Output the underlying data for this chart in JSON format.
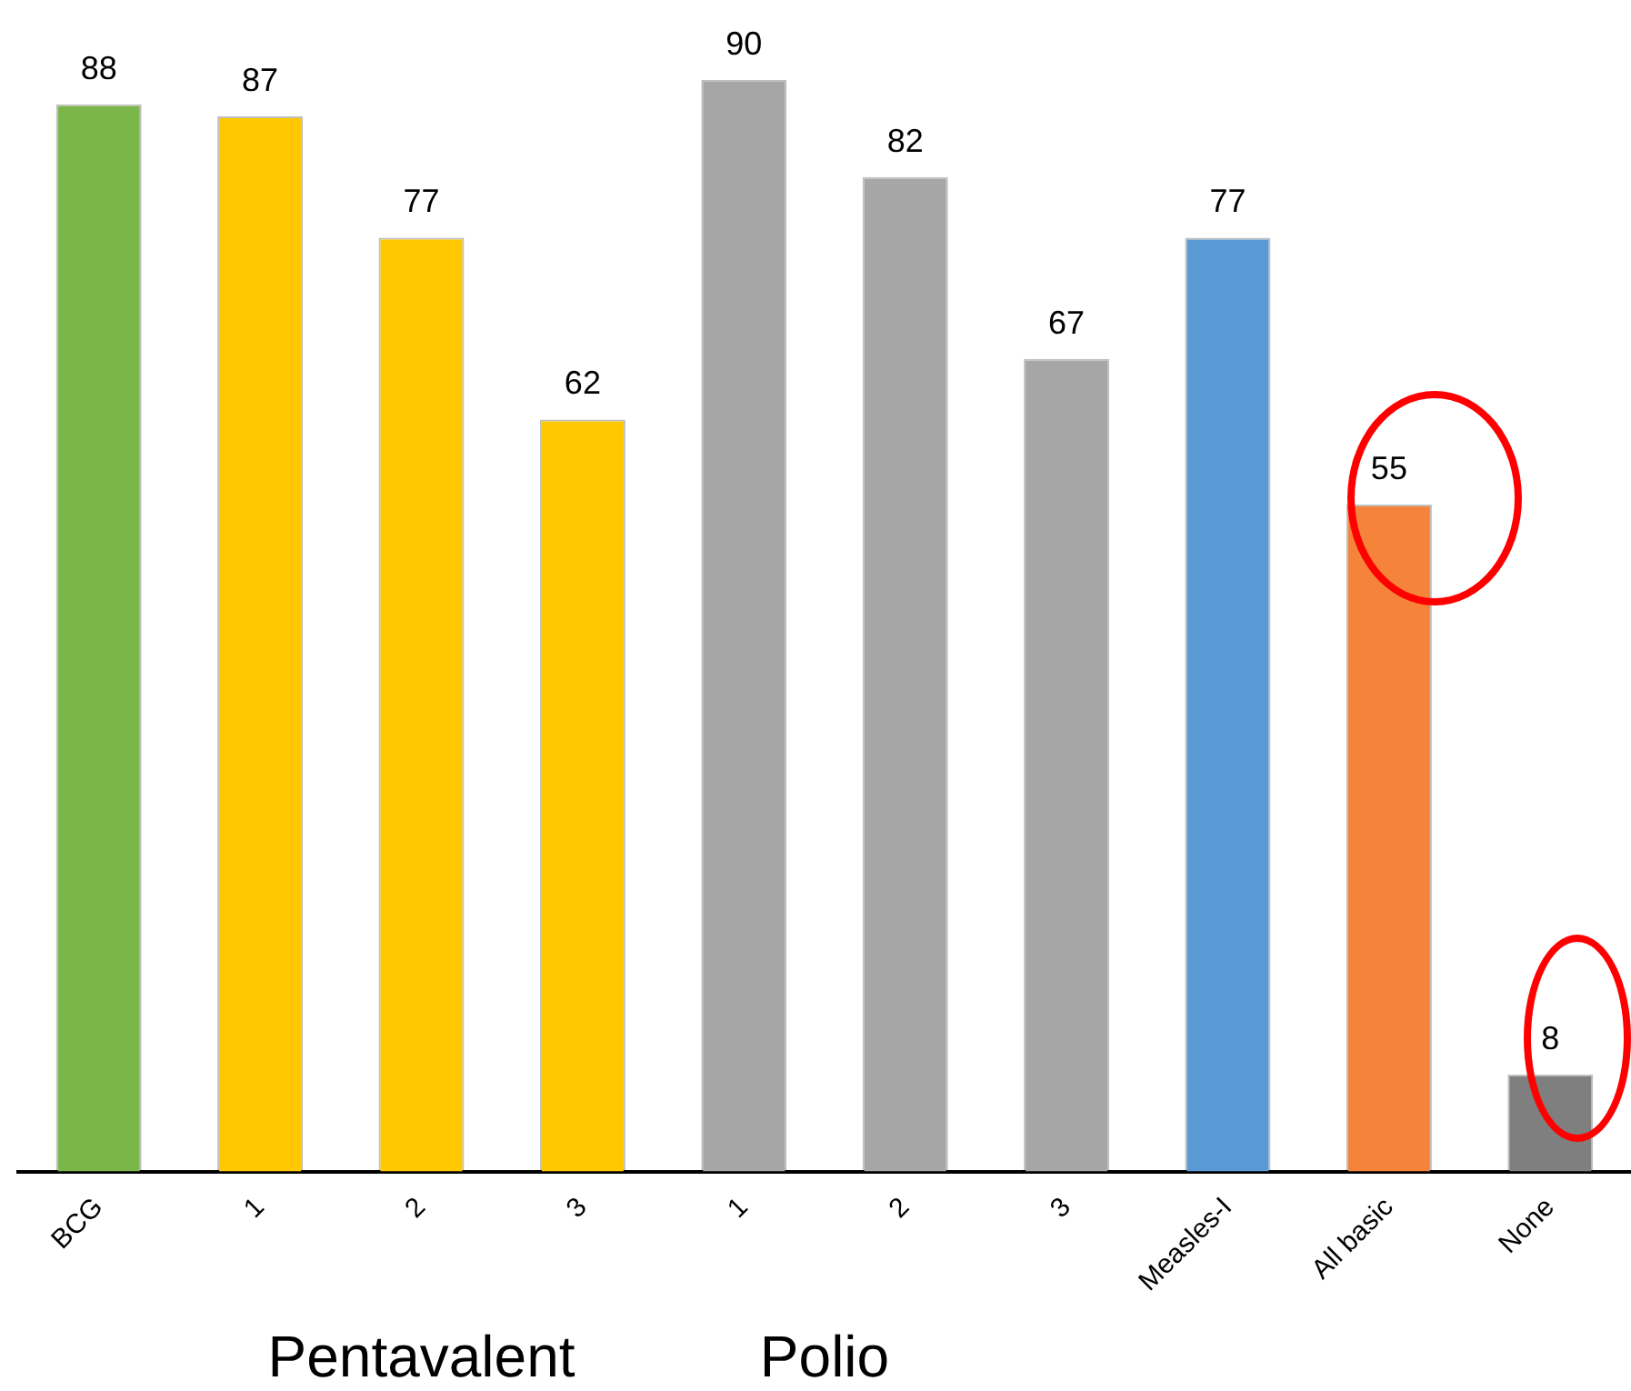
{
  "chart_data": {
    "type": "bar",
    "categories": [
      "BCG",
      "1",
      "2",
      "3",
      "1",
      "2",
      "3",
      "Measles-I",
      "All basic",
      "None"
    ],
    "values": [
      88,
      87,
      77,
      62,
      90,
      82,
      67,
      77,
      55,
      8
    ],
    "colors": [
      "#7ab648",
      "#ffc800",
      "#ffc800",
      "#ffc800",
      "#a6a6a6",
      "#a6a6a6",
      "#a6a6a6",
      "#5b9bd5",
      "#f5843a",
      "#7f7f7f"
    ],
    "data_labels": true,
    "grid": false,
    "legend": false,
    "annotations": [
      "Pentavalent",
      "Polio"
    ]
  }
}
